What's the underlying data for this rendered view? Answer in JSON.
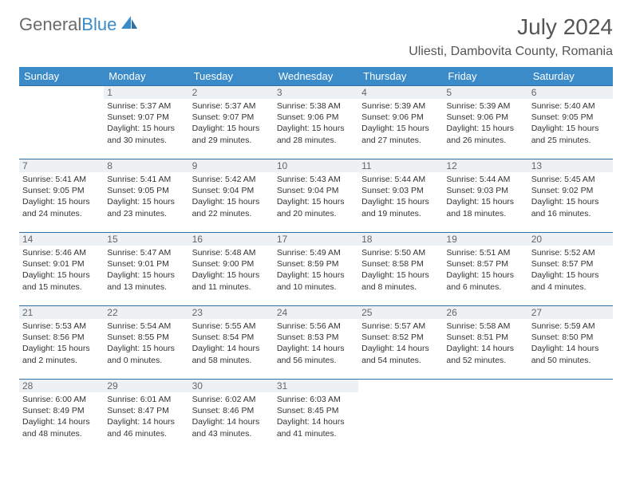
{
  "brand": {
    "part1": "General",
    "part2": "Blue"
  },
  "title": "July 2024",
  "location": "Uliesti, Dambovita County, Romania",
  "colors": {
    "accent": "#3b8bc9",
    "border": "#2f6fa3",
    "dayheader_bg": "#eef1f3",
    "text": "#333333"
  },
  "weekday_labels": [
    "Sunday",
    "Monday",
    "Tuesday",
    "Wednesday",
    "Thursday",
    "Friday",
    "Saturday"
  ],
  "layout": {
    "start_offset": 1,
    "days_in_month": 31
  },
  "days": [
    {
      "n": 1,
      "sunrise": "5:37 AM",
      "sunset": "9:07 PM",
      "daylight": "15 hours and 30 minutes."
    },
    {
      "n": 2,
      "sunrise": "5:37 AM",
      "sunset": "9:07 PM",
      "daylight": "15 hours and 29 minutes."
    },
    {
      "n": 3,
      "sunrise": "5:38 AM",
      "sunset": "9:06 PM",
      "daylight": "15 hours and 28 minutes."
    },
    {
      "n": 4,
      "sunrise": "5:39 AM",
      "sunset": "9:06 PM",
      "daylight": "15 hours and 27 minutes."
    },
    {
      "n": 5,
      "sunrise": "5:39 AM",
      "sunset": "9:06 PM",
      "daylight": "15 hours and 26 minutes."
    },
    {
      "n": 6,
      "sunrise": "5:40 AM",
      "sunset": "9:05 PM",
      "daylight": "15 hours and 25 minutes."
    },
    {
      "n": 7,
      "sunrise": "5:41 AM",
      "sunset": "9:05 PM",
      "daylight": "15 hours and 24 minutes."
    },
    {
      "n": 8,
      "sunrise": "5:41 AM",
      "sunset": "9:05 PM",
      "daylight": "15 hours and 23 minutes."
    },
    {
      "n": 9,
      "sunrise": "5:42 AM",
      "sunset": "9:04 PM",
      "daylight": "15 hours and 22 minutes."
    },
    {
      "n": 10,
      "sunrise": "5:43 AM",
      "sunset": "9:04 PM",
      "daylight": "15 hours and 20 minutes."
    },
    {
      "n": 11,
      "sunrise": "5:44 AM",
      "sunset": "9:03 PM",
      "daylight": "15 hours and 19 minutes."
    },
    {
      "n": 12,
      "sunrise": "5:44 AM",
      "sunset": "9:03 PM",
      "daylight": "15 hours and 18 minutes."
    },
    {
      "n": 13,
      "sunrise": "5:45 AM",
      "sunset": "9:02 PM",
      "daylight": "15 hours and 16 minutes."
    },
    {
      "n": 14,
      "sunrise": "5:46 AM",
      "sunset": "9:01 PM",
      "daylight": "15 hours and 15 minutes."
    },
    {
      "n": 15,
      "sunrise": "5:47 AM",
      "sunset": "9:01 PM",
      "daylight": "15 hours and 13 minutes."
    },
    {
      "n": 16,
      "sunrise": "5:48 AM",
      "sunset": "9:00 PM",
      "daylight": "15 hours and 11 minutes."
    },
    {
      "n": 17,
      "sunrise": "5:49 AM",
      "sunset": "8:59 PM",
      "daylight": "15 hours and 10 minutes."
    },
    {
      "n": 18,
      "sunrise": "5:50 AM",
      "sunset": "8:58 PM",
      "daylight": "15 hours and 8 minutes."
    },
    {
      "n": 19,
      "sunrise": "5:51 AM",
      "sunset": "8:57 PM",
      "daylight": "15 hours and 6 minutes."
    },
    {
      "n": 20,
      "sunrise": "5:52 AM",
      "sunset": "8:57 PM",
      "daylight": "15 hours and 4 minutes."
    },
    {
      "n": 21,
      "sunrise": "5:53 AM",
      "sunset": "8:56 PM",
      "daylight": "15 hours and 2 minutes."
    },
    {
      "n": 22,
      "sunrise": "5:54 AM",
      "sunset": "8:55 PM",
      "daylight": "15 hours and 0 minutes."
    },
    {
      "n": 23,
      "sunrise": "5:55 AM",
      "sunset": "8:54 PM",
      "daylight": "14 hours and 58 minutes."
    },
    {
      "n": 24,
      "sunrise": "5:56 AM",
      "sunset": "8:53 PM",
      "daylight": "14 hours and 56 minutes."
    },
    {
      "n": 25,
      "sunrise": "5:57 AM",
      "sunset": "8:52 PM",
      "daylight": "14 hours and 54 minutes."
    },
    {
      "n": 26,
      "sunrise": "5:58 AM",
      "sunset": "8:51 PM",
      "daylight": "14 hours and 52 minutes."
    },
    {
      "n": 27,
      "sunrise": "5:59 AM",
      "sunset": "8:50 PM",
      "daylight": "14 hours and 50 minutes."
    },
    {
      "n": 28,
      "sunrise": "6:00 AM",
      "sunset": "8:49 PM",
      "daylight": "14 hours and 48 minutes."
    },
    {
      "n": 29,
      "sunrise": "6:01 AM",
      "sunset": "8:47 PM",
      "daylight": "14 hours and 46 minutes."
    },
    {
      "n": 30,
      "sunrise": "6:02 AM",
      "sunset": "8:46 PM",
      "daylight": "14 hours and 43 minutes."
    },
    {
      "n": 31,
      "sunrise": "6:03 AM",
      "sunset": "8:45 PM",
      "daylight": "14 hours and 41 minutes."
    }
  ],
  "labels": {
    "sunrise_prefix": "Sunrise: ",
    "sunset_prefix": "Sunset: ",
    "daylight_prefix": "Daylight: "
  }
}
